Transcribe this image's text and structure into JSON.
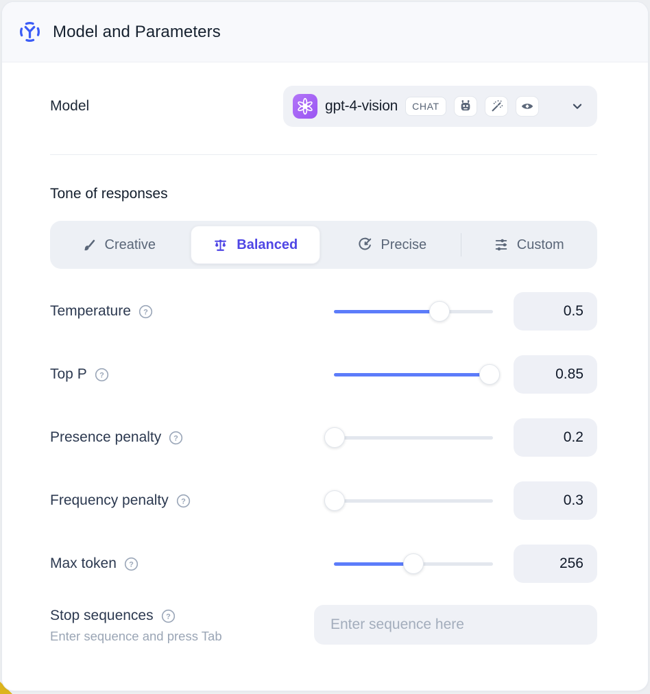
{
  "header": {
    "title": "Model and Parameters",
    "icon": "model-hub-icon"
  },
  "model": {
    "label": "Model",
    "selected": {
      "name": "gpt-4-vision",
      "provider_icon": "openai-logo-icon",
      "type_badge": "CHAT",
      "capability_icons": [
        "robot-icon",
        "magic-wand-icon",
        "eye-icon"
      ]
    },
    "dropdown_icon": "chevron-down-icon"
  },
  "tone": {
    "label": "Tone of responses",
    "tabs": [
      {
        "label": "Creative",
        "icon": "paintbrush-icon",
        "selected": false
      },
      {
        "label": "Balanced",
        "icon": "balance-scale-icon",
        "selected": true
      },
      {
        "label": "Precise",
        "icon": "target-arrow-icon",
        "selected": false
      },
      {
        "label": "Custom",
        "icon": "adjustments-icon",
        "selected": false
      }
    ]
  },
  "parameters": [
    {
      "label": "Temperature",
      "value": "0.5",
      "slider_fill_pct": 66.5,
      "has_help": true
    },
    {
      "label": "Top P",
      "value": "0.85",
      "slider_fill_pct": 98,
      "has_help": true
    },
    {
      "label": "Presence penalty",
      "value": "0.2",
      "slider_fill_pct": 0.5,
      "has_help": true
    },
    {
      "label": "Frequency penalty",
      "value": "0.3",
      "slider_fill_pct": 0.5,
      "has_help": true
    },
    {
      "label": "Max token",
      "value": "256",
      "slider_fill_pct": 50,
      "has_help": true
    }
  ],
  "stop_sequences": {
    "label": "Stop sequences",
    "helper": "Enter sequence and press Tab",
    "placeholder": "Enter sequence here",
    "value": "",
    "has_help": true
  },
  "colors": {
    "accent_indigo": "#4f46e5",
    "slider_blue": "#5c7cfa",
    "openai_purple": "#a263f5",
    "header_icon_blue": "#3b5cf6",
    "corner_yellow": "#dcb41e",
    "field_bg": "#eff1f6"
  }
}
